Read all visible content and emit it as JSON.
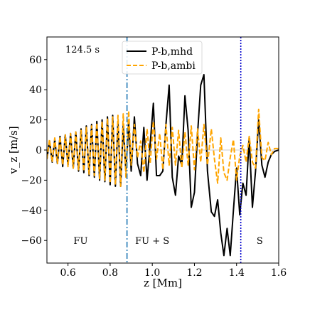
{
  "chart_data": {
    "type": "line",
    "title": "",
    "xlabel": "z [Mm]",
    "ylabel": "v_z [m/s]",
    "xlim": [
      0.5,
      1.6
    ],
    "ylim": [
      -75,
      75
    ],
    "xticks": [
      0.6,
      0.8,
      1.0,
      1.2,
      1.4,
      1.6
    ],
    "xtick_labels": [
      "0.6",
      "0.8",
      "1.0",
      "1.2",
      "1.4",
      "1.6"
    ],
    "yticks": [
      -60,
      -40,
      -20,
      0,
      20,
      40,
      60
    ],
    "ytick_labels": [
      "−60",
      "−40",
      "−20",
      "0",
      "20",
      "40",
      "60"
    ],
    "grid": false,
    "legend_position": "top-center",
    "time_label": "124.5 s",
    "zero_line": true,
    "vertical_lines": [
      {
        "x": 0.88,
        "style": "dashdot",
        "color": "#1f77b4"
      },
      {
        "x": 1.42,
        "style": "dotted",
        "color": "#0000cc"
      }
    ],
    "region_labels": [
      {
        "text": "FU",
        "x": 0.66,
        "y": -60
      },
      {
        "text": "FU + S",
        "x": 1.0,
        "y": -60
      },
      {
        "text": "S",
        "x": 1.51,
        "y": -60
      }
    ],
    "series": [
      {
        "name": "P-b,mhd",
        "color": "#000000",
        "style": "solid",
        "x": [
          0.5,
          0.512,
          0.525,
          0.537,
          0.55,
          0.562,
          0.575,
          0.587,
          0.6,
          0.612,
          0.625,
          0.637,
          0.65,
          0.662,
          0.675,
          0.687,
          0.7,
          0.712,
          0.725,
          0.737,
          0.75,
          0.762,
          0.775,
          0.787,
          0.8,
          0.812,
          0.825,
          0.837,
          0.85,
          0.862,
          0.875,
          0.888,
          0.9,
          0.915,
          0.93,
          0.945,
          0.96,
          0.975,
          0.99,
          1.005,
          1.02,
          1.035,
          1.05,
          1.065,
          1.08,
          1.095,
          1.11,
          1.125,
          1.14,
          1.155,
          1.17,
          1.185,
          1.2,
          1.215,
          1.23,
          1.245,
          1.262,
          1.28,
          1.295,
          1.31,
          1.325,
          1.34,
          1.355,
          1.37,
          1.385,
          1.4,
          1.415,
          1.43,
          1.445,
          1.46,
          1.475,
          1.49,
          1.505,
          1.52,
          1.535,
          1.55,
          1.565,
          1.58,
          1.6
        ],
        "y": [
          -6,
          6,
          -8,
          7,
          -9,
          9,
          -11,
          10,
          -10,
          11,
          -12,
          12,
          -14,
          14,
          -15,
          16,
          -17,
          17,
          -18,
          19,
          -20,
          20,
          -21,
          22,
          -23,
          23,
          -24,
          19,
          -24,
          16,
          -14,
          18,
          -14,
          22,
          -9,
          -17,
          15,
          -20,
          4,
          31,
          -17,
          -17,
          -14,
          17,
          43,
          -18,
          -30,
          -4,
          -10,
          36,
          13,
          -38,
          -28,
          11,
          43,
          50,
          -14,
          -41,
          -44,
          -33,
          -55,
          -70,
          -52,
          -70,
          -40,
          -12,
          -43,
          -22,
          -30,
          8,
          -38,
          -14,
          20,
          -10,
          -18,
          -8,
          -3,
          -1,
          0
        ]
      },
      {
        "name": "P-b,ambi",
        "color": "#ffa500",
        "style": "dashed",
        "x": [
          0.5,
          0.512,
          0.525,
          0.537,
          0.55,
          0.562,
          0.575,
          0.587,
          0.6,
          0.612,
          0.625,
          0.637,
          0.65,
          0.662,
          0.675,
          0.687,
          0.7,
          0.712,
          0.725,
          0.737,
          0.75,
          0.762,
          0.775,
          0.787,
          0.8,
          0.812,
          0.825,
          0.837,
          0.85,
          0.862,
          0.875,
          0.888,
          0.9,
          0.915,
          0.93,
          0.945,
          0.96,
          0.975,
          0.99,
          1.005,
          1.02,
          1.035,
          1.05,
          1.065,
          1.08,
          1.095,
          1.11,
          1.125,
          1.14,
          1.155,
          1.17,
          1.185,
          1.2,
          1.215,
          1.23,
          1.245,
          1.262,
          1.28,
          1.295,
          1.31,
          1.325,
          1.34,
          1.355,
          1.37,
          1.385,
          1.4,
          1.415,
          1.43,
          1.445,
          1.46,
          1.475,
          1.49,
          1.505,
          1.52,
          1.535,
          1.55,
          1.565,
          1.58,
          1.6
        ],
        "y": [
          -6,
          7,
          -8,
          8,
          -9,
          9,
          -10,
          10,
          -11,
          11,
          -12,
          12,
          -13,
          13,
          -14,
          15,
          -16,
          16,
          -17,
          18,
          -19,
          19,
          -20,
          21,
          -22,
          22,
          -23,
          23,
          -24,
          24,
          -18,
          26,
          -10,
          17,
          -5,
          6,
          -15,
          14,
          -9,
          19,
          -6,
          11,
          -13,
          17,
          -10,
          15,
          -10,
          13,
          -12,
          12,
          -10,
          16,
          -13,
          14,
          -8,
          17,
          -10,
          14,
          -6,
          -22,
          8,
          -15,
          -20,
          -5,
          7,
          -20,
          -4,
          3,
          -8,
          9,
          -8,
          -12,
          27,
          -5,
          -7,
          5,
          -3,
          1,
          1
        ]
      }
    ]
  }
}
